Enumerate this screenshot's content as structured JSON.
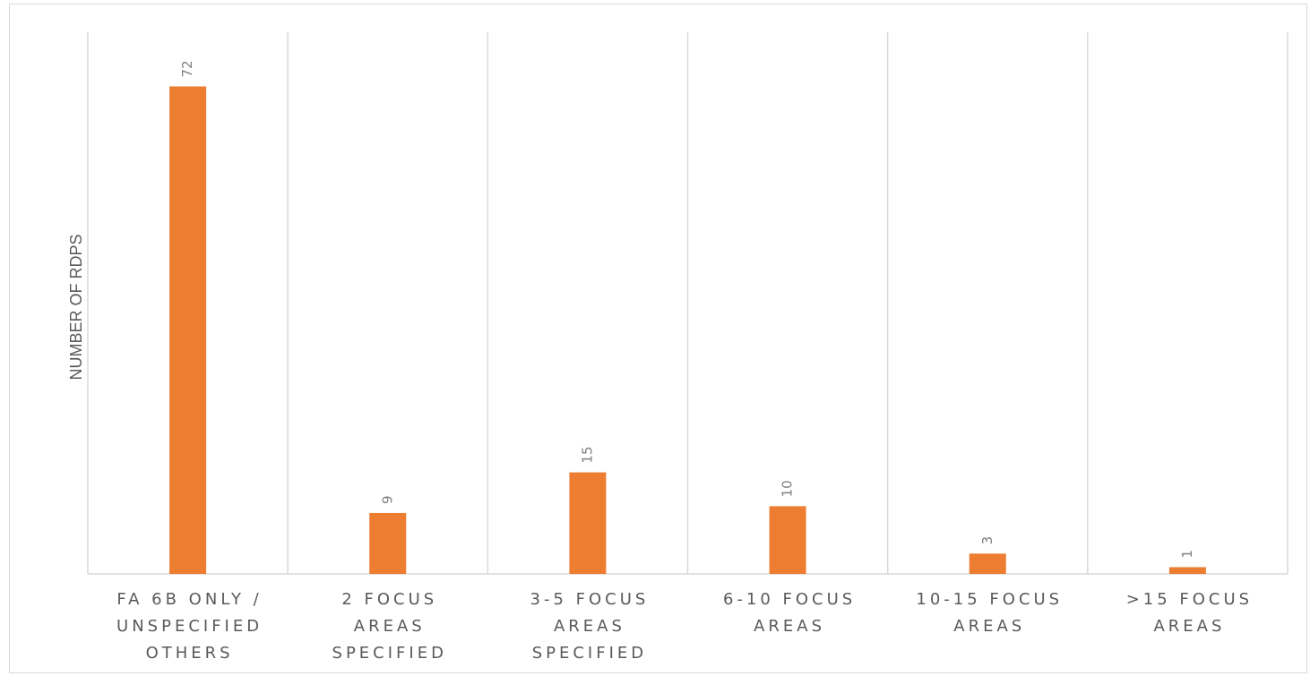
{
  "chart_data": {
    "type": "bar",
    "title": "",
    "xlabel": "",
    "ylabel": "NUMBER OF RDPS",
    "categories": [
      [
        "FA 6B ONLY /",
        "UNSPECIFIED",
        "OTHERS"
      ],
      [
        "2 FOCUS",
        "AREAS",
        "SPECIFIED"
      ],
      [
        "3-5 FOCUS",
        "AREAS",
        "SPECIFIED"
      ],
      [
        "6-10 FOCUS",
        "AREAS"
      ],
      [
        "10-15 FOCUS",
        "AREAS"
      ],
      [
        ">15 FOCUS",
        "AREAS"
      ]
    ],
    "values": [
      72,
      9,
      15,
      10,
      3,
      1
    ],
    "ylim": [
      0,
      80
    ],
    "grid": "vertical category separators",
    "legend": "none",
    "data_labels": true,
    "colors": {
      "bar": "#ed7d31",
      "grid": "#d9d9d9",
      "axis": "#d9d9d9",
      "text": "#595959",
      "data_label": "#7f7f7f"
    }
  }
}
